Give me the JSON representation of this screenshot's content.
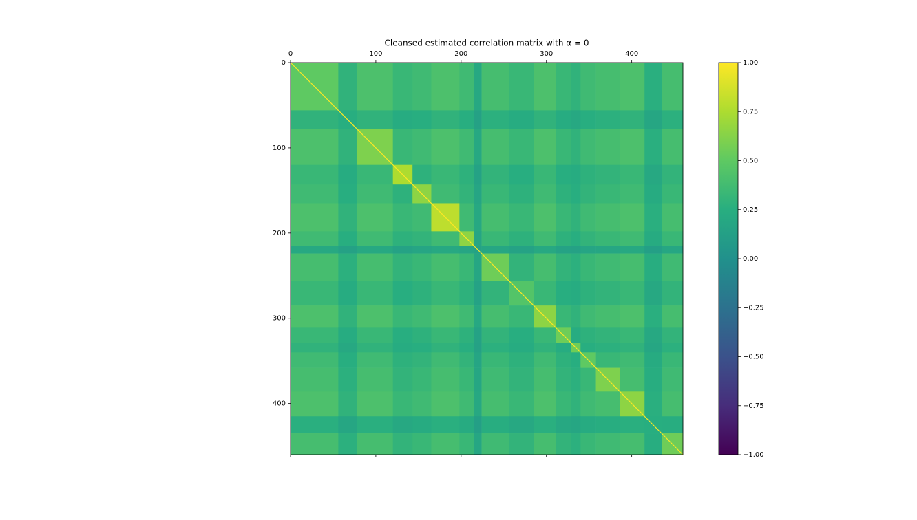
{
  "chart_data": {
    "type": "heatmap",
    "title": "Cleansed estimated correlation matrix with α = 0",
    "colormap": "viridis",
    "edges": [
      0,
      56,
      78,
      120,
      143,
      165,
      198,
      215,
      224,
      256,
      285,
      311,
      329,
      340,
      358,
      386,
      415,
      435,
      460
    ],
    "diagonal_value": 1,
    "values": [
      [
        0.5,
        0.29,
        0.42,
        0.33,
        0.36,
        0.42,
        0.36,
        0.2,
        0.39,
        0.33,
        0.42,
        0.33,
        0.29,
        0.36,
        0.39,
        0.42,
        0.26,
        0.39
      ],
      [
        0.29,
        0.25,
        0.29,
        0.23,
        0.25,
        0.29,
        0.25,
        0.14,
        0.27,
        0.23,
        0.29,
        0.23,
        0.2,
        0.25,
        0.27,
        0.29,
        0.18,
        0.27
      ],
      [
        0.42,
        0.29,
        0.6,
        0.33,
        0.36,
        0.42,
        0.36,
        0.2,
        0.39,
        0.33,
        0.42,
        0.33,
        0.29,
        0.36,
        0.39,
        0.42,
        0.26,
        0.39
      ],
      [
        0.33,
        0.23,
        0.33,
        0.75,
        0.28,
        0.33,
        0.28,
        0.15,
        0.3,
        0.25,
        0.33,
        0.25,
        0.23,
        0.28,
        0.3,
        0.33,
        0.2,
        0.3
      ],
      [
        0.36,
        0.25,
        0.36,
        0.28,
        0.65,
        0.36,
        0.3,
        0.17,
        0.33,
        0.28,
        0.36,
        0.28,
        0.25,
        0.3,
        0.33,
        0.36,
        0.22,
        0.33
      ],
      [
        0.42,
        0.29,
        0.42,
        0.33,
        0.36,
        0.8,
        0.36,
        0.2,
        0.39,
        0.33,
        0.42,
        0.33,
        0.29,
        0.36,
        0.39,
        0.42,
        0.26,
        0.39
      ],
      [
        0.36,
        0.25,
        0.36,
        0.28,
        0.3,
        0.36,
        0.65,
        0.17,
        0.33,
        0.28,
        0.36,
        0.28,
        0.25,
        0.3,
        0.33,
        0.36,
        0.22,
        0.33
      ],
      [
        0.2,
        0.14,
        0.2,
        0.15,
        0.17,
        0.2,
        0.17,
        0.15,
        0.18,
        0.15,
        0.2,
        0.15,
        0.14,
        0.17,
        0.18,
        0.2,
        0.12,
        0.18
      ],
      [
        0.39,
        0.27,
        0.39,
        0.3,
        0.33,
        0.39,
        0.33,
        0.18,
        0.55,
        0.3,
        0.39,
        0.3,
        0.27,
        0.33,
        0.36,
        0.39,
        0.24,
        0.36
      ],
      [
        0.33,
        0.23,
        0.33,
        0.25,
        0.28,
        0.33,
        0.28,
        0.15,
        0.3,
        0.45,
        0.33,
        0.25,
        0.23,
        0.28,
        0.3,
        0.33,
        0.2,
        0.3
      ],
      [
        0.42,
        0.29,
        0.42,
        0.33,
        0.36,
        0.42,
        0.36,
        0.2,
        0.39,
        0.33,
        0.65,
        0.33,
        0.29,
        0.36,
        0.39,
        0.42,
        0.26,
        0.39
      ],
      [
        0.33,
        0.23,
        0.33,
        0.25,
        0.28,
        0.33,
        0.28,
        0.15,
        0.3,
        0.25,
        0.33,
        0.55,
        0.23,
        0.28,
        0.3,
        0.33,
        0.2,
        0.3
      ],
      [
        0.29,
        0.2,
        0.29,
        0.23,
        0.25,
        0.29,
        0.25,
        0.14,
        0.27,
        0.23,
        0.29,
        0.23,
        0.55,
        0.25,
        0.27,
        0.29,
        0.18,
        0.27
      ],
      [
        0.36,
        0.25,
        0.36,
        0.28,
        0.3,
        0.36,
        0.3,
        0.17,
        0.33,
        0.28,
        0.36,
        0.28,
        0.25,
        0.5,
        0.33,
        0.36,
        0.22,
        0.33
      ],
      [
        0.39,
        0.27,
        0.39,
        0.3,
        0.33,
        0.39,
        0.33,
        0.18,
        0.36,
        0.3,
        0.39,
        0.3,
        0.27,
        0.33,
        0.6,
        0.39,
        0.24,
        0.36
      ],
      [
        0.42,
        0.29,
        0.42,
        0.33,
        0.36,
        0.42,
        0.36,
        0.2,
        0.39,
        0.33,
        0.42,
        0.33,
        0.29,
        0.36,
        0.39,
        0.65,
        0.26,
        0.39
      ],
      [
        0.26,
        0.18,
        0.26,
        0.2,
        0.22,
        0.26,
        0.22,
        0.12,
        0.24,
        0.2,
        0.26,
        0.2,
        0.18,
        0.22,
        0.24,
        0.26,
        0.25,
        0.24
      ],
      [
        0.39,
        0.27,
        0.39,
        0.3,
        0.33,
        0.39,
        0.33,
        0.18,
        0.36,
        0.3,
        0.39,
        0.3,
        0.27,
        0.33,
        0.36,
        0.39,
        0.24,
        0.55
      ]
    ],
    "xlim": [
      0,
      460
    ],
    "xticks": [
      0,
      100,
      200,
      300,
      400
    ],
    "ylim": [
      460,
      0
    ],
    "yticks": [
      0,
      100,
      200,
      300,
      400
    ],
    "clim": [
      -1,
      1
    ],
    "cticks": [
      {
        "value": -1,
        "label": "−1.00"
      },
      {
        "value": -0.75,
        "label": "−0.75"
      },
      {
        "value": -0.5,
        "label": "−0.50"
      },
      {
        "value": -0.25,
        "label": "−0.25"
      },
      {
        "value": 0,
        "label": "0.00"
      },
      {
        "value": 0.25,
        "label": "0.25"
      },
      {
        "value": 0.5,
        "label": "0.50"
      },
      {
        "value": 0.75,
        "label": "0.75"
      },
      {
        "value": 1,
        "label": "1.00"
      }
    ]
  }
}
